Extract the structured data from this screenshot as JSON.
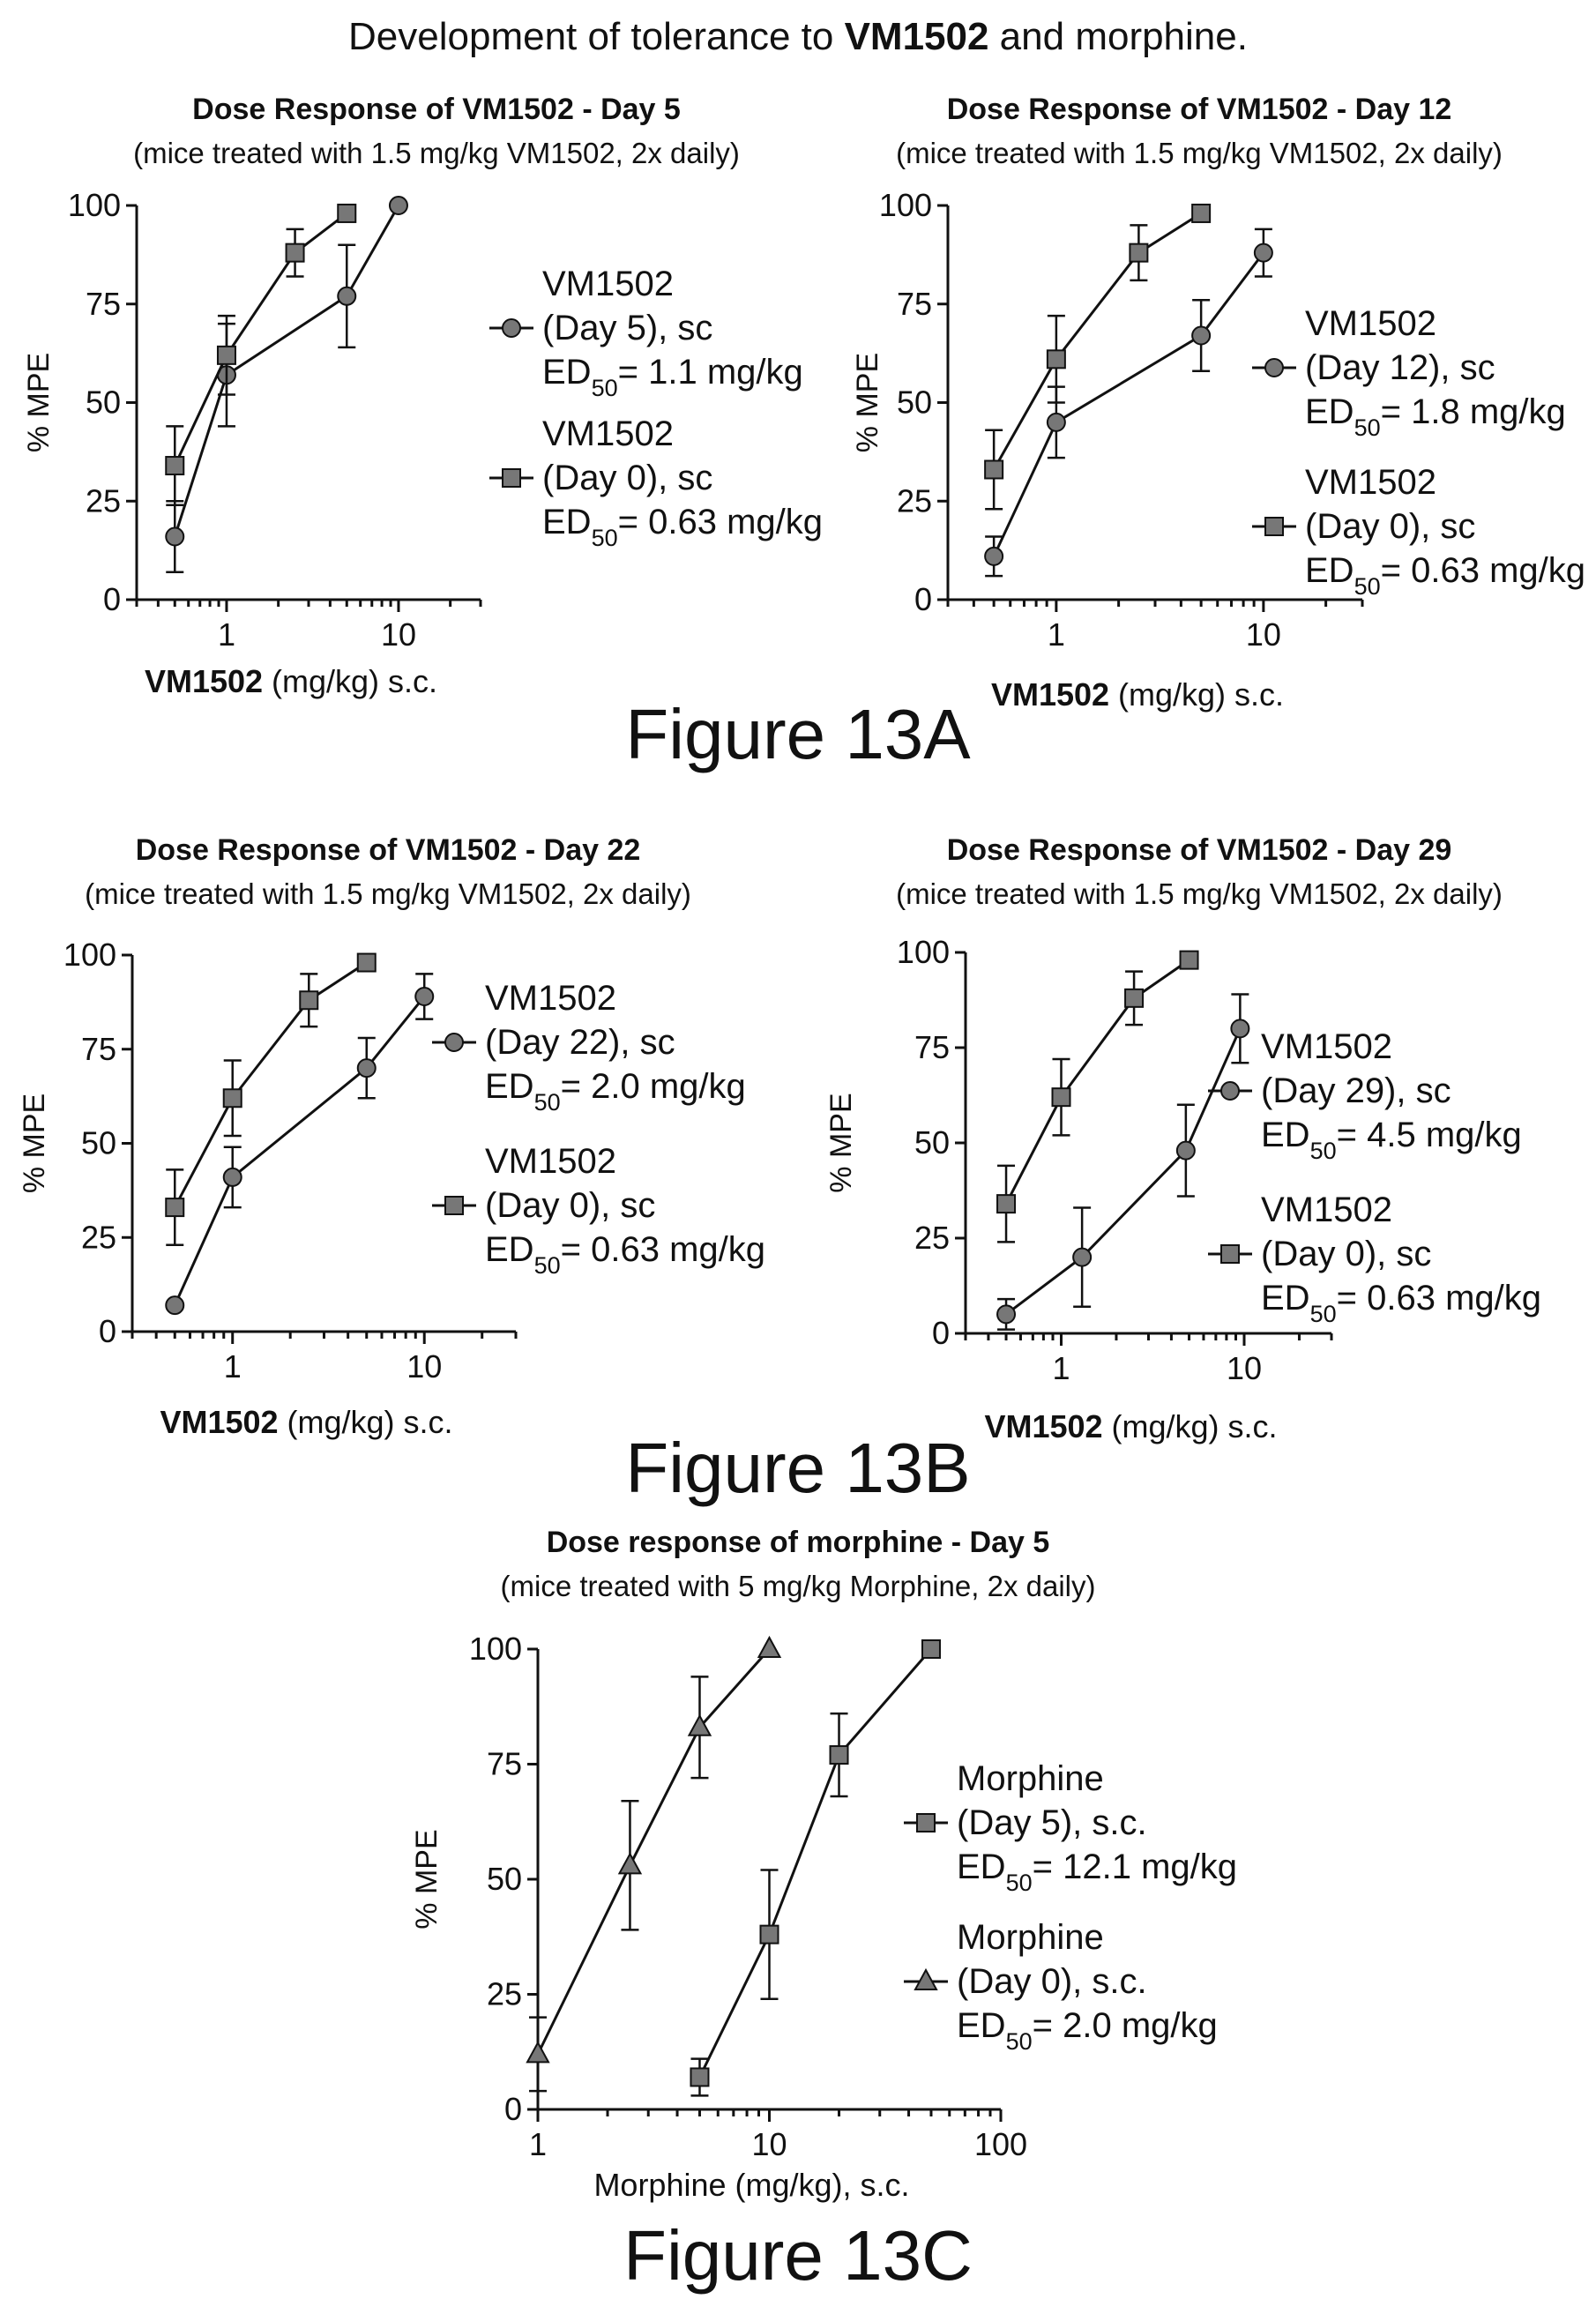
{
  "page_title": {
    "prefix": "Development of tolerance to ",
    "bold": "VM1502",
    "suffix": " and morphine."
  },
  "figure_labels": [
    "Figure 13A",
    "Figure 13B",
    "Figure 13C"
  ],
  "chart_data": [
    {
      "type": "line",
      "title": "Dose Response of VM1502 - Day 5",
      "subtitle": "(mice treated with 1.5 mg/kg VM1502, 2x daily)",
      "xlabel_bold": "VM1502",
      "xlabel_rest": " (mg/kg) s.c.",
      "ylabel": "% MPE",
      "x_scale": "log",
      "xlim": [
        0.3,
        30
      ],
      "ylim": [
        0,
        100
      ],
      "x_ticks": [
        "1",
        "10"
      ],
      "y_ticks": [
        "0",
        "25",
        "50",
        "75",
        "100"
      ],
      "series": [
        {
          "marker": "circle",
          "legend": {
            "l1": "VM1502",
            "l2": "(Day 5), sc",
            "ed_pre": "ED",
            "ed_sub": "50",
            "ed_post": "= 1.1 mg/kg"
          },
          "x": [
            0.5,
            1,
            5,
            10
          ],
          "y": [
            16,
            57,
            77,
            100
          ],
          "err": [
            9,
            13,
            13,
            0
          ]
        },
        {
          "marker": "square",
          "legend": {
            "l1": "VM1502",
            "l2": "(Day 0), sc",
            "ed_pre": "ED",
            "ed_sub": "50",
            "ed_post": "= 0.63 mg/kg"
          },
          "x": [
            0.5,
            1,
            2.5,
            5
          ],
          "y": [
            34,
            62,
            88,
            98
          ],
          "err": [
            10,
            10,
            6,
            0
          ]
        }
      ]
    },
    {
      "type": "line",
      "title": "Dose Response of VM1502 - Day 12",
      "subtitle": "(mice treated with 1.5 mg/kg VM1502, 2x daily)",
      "xlabel_bold": "VM1502",
      "xlabel_rest": " (mg/kg) s.c.",
      "ylabel": "% MPE",
      "x_scale": "log",
      "xlim": [
        0.3,
        30
      ],
      "ylim": [
        0,
        100
      ],
      "x_ticks": [
        "1",
        "10"
      ],
      "y_ticks": [
        "0",
        "25",
        "50",
        "75",
        "100"
      ],
      "series": [
        {
          "marker": "circle",
          "legend": {
            "l1": "VM1502",
            "l2": "(Day 12), sc",
            "ed_pre": "ED",
            "ed_sub": "50",
            "ed_post": "= 1.8 mg/kg"
          },
          "x": [
            0.5,
            1,
            5,
            10
          ],
          "y": [
            11,
            45,
            67,
            88
          ],
          "err": [
            5,
            9,
            9,
            6
          ]
        },
        {
          "marker": "square",
          "legend": {
            "l1": "VM1502",
            "l2": "(Day 0), sc",
            "ed_pre": "ED",
            "ed_sub": "50",
            "ed_post": "= 0.63 mg/kg"
          },
          "x": [
            0.5,
            1,
            2.5,
            5
          ],
          "y": [
            33,
            61,
            88,
            98
          ],
          "err": [
            10,
            11,
            7,
            0
          ]
        }
      ]
    },
    {
      "type": "line",
      "title": "Dose Response of VM1502 - Day 22",
      "subtitle": "(mice treated with 1.5 mg/kg VM1502, 2x daily)",
      "xlabel_bold": "VM1502",
      "xlabel_rest": " (mg/kg) s.c.",
      "ylabel": "% MPE",
      "x_scale": "log",
      "xlim": [
        0.3,
        30
      ],
      "ylim": [
        0,
        100
      ],
      "x_ticks": [
        "1",
        "10"
      ],
      "y_ticks": [
        "0",
        "25",
        "50",
        "75",
        "100"
      ],
      "series": [
        {
          "marker": "circle",
          "legend": {
            "l1": "VM1502",
            "l2": "(Day 22), sc",
            "ed_pre": "ED",
            "ed_sub": "50",
            "ed_post": "= 2.0 mg/kg"
          },
          "x": [
            0.5,
            1,
            5,
            10
          ],
          "y": [
            7,
            41,
            70,
            89
          ],
          "err": [
            0,
            8,
            8,
            6
          ]
        },
        {
          "marker": "square",
          "legend": {
            "l1": "VM1502",
            "l2": "(Day 0), sc",
            "ed_pre": "ED",
            "ed_sub": "50",
            "ed_post": "= 0.63 mg/kg"
          },
          "x": [
            0.5,
            1,
            2.5,
            5
          ],
          "y": [
            33,
            62,
            88,
            98
          ],
          "err": [
            10,
            10,
            7,
            0
          ]
        }
      ]
    },
    {
      "type": "line",
      "title": "Dose Response of VM1502 - Day 29",
      "subtitle": "(mice treated with 1.5 mg/kg VM1502, 2x daily)",
      "xlabel_bold": "VM1502",
      "xlabel_rest": " (mg/kg) s.c.",
      "ylabel": "% MPE",
      "x_scale": "log",
      "xlim": [
        0.3,
        30
      ],
      "ylim": [
        0,
        100
      ],
      "x_ticks": [
        "1",
        "10"
      ],
      "y_ticks": [
        "0",
        "25",
        "50",
        "75",
        "100"
      ],
      "series": [
        {
          "marker": "circle",
          "legend": {
            "l1": "VM1502",
            "l2": "(Day 29), sc",
            "ed_pre": "ED",
            "ed_sub": "50",
            "ed_post": "= 4.5 mg/kg"
          },
          "x": [
            0.5,
            1.3,
            4.8,
            9.5
          ],
          "y": [
            5,
            20,
            48,
            80
          ],
          "err": [
            4,
            13,
            12,
            9
          ]
        },
        {
          "marker": "square",
          "legend": {
            "l1": "VM1502",
            "l2": "(Day 0), sc",
            "ed_pre": "ED",
            "ed_sub": "50",
            "ed_post": "= 0.63 mg/kg"
          },
          "x": [
            0.5,
            1,
            2.5,
            5
          ],
          "y": [
            34,
            62,
            88,
            98
          ],
          "err": [
            10,
            10,
            7,
            0
          ]
        }
      ]
    },
    {
      "type": "line",
      "title": "Dose response of morphine - Day 5",
      "subtitle": "(mice treated with 5 mg/kg Morphine, 2x daily)",
      "xlabel_bold": "",
      "xlabel_rest": "Morphine (mg/kg), s.c.",
      "ylabel": "% MPE",
      "x_scale": "log",
      "xlim": [
        1,
        100
      ],
      "ylim": [
        0,
        100
      ],
      "x_ticks": [
        "1",
        "10",
        "100"
      ],
      "y_ticks": [
        "0",
        "25",
        "50",
        "75",
        "100"
      ],
      "series": [
        {
          "marker": "square",
          "legend": {
            "l1": "Morphine",
            "l2": "(Day 5), s.c.",
            "ed_pre": "ED",
            "ed_sub": "50",
            "ed_post": "= 12.1 mg/kg"
          },
          "x": [
            5,
            10,
            20,
            50
          ],
          "y": [
            7,
            38,
            77,
            100
          ],
          "err": [
            4,
            14,
            9,
            0
          ]
        },
        {
          "marker": "triangle",
          "legend": {
            "l1": "Morphine",
            "l2": "(Day 0), s.c.",
            "ed_pre": "ED",
            "ed_sub": "50",
            "ed_post": "= 2.0 mg/kg"
          },
          "x": [
            1,
            2.5,
            5,
            10
          ],
          "y": [
            12,
            53,
            83,
            100
          ],
          "err": [
            8,
            14,
            11,
            0
          ]
        }
      ]
    }
  ]
}
